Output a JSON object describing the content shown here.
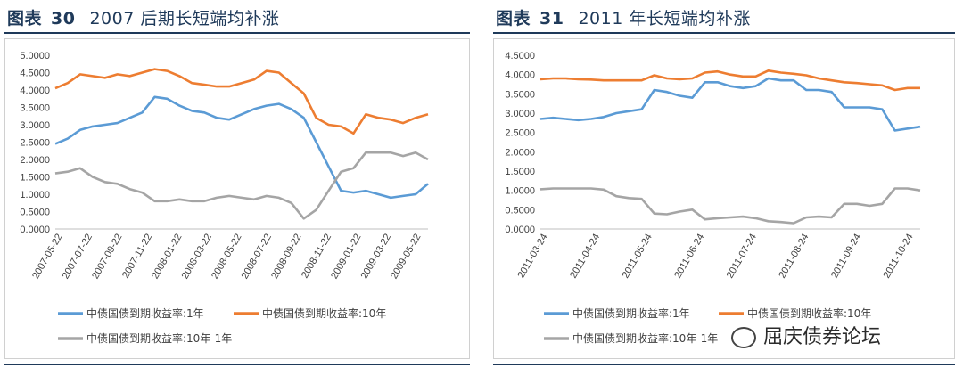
{
  "charts": [
    {
      "title_prefix": "图表",
      "title_number": "30",
      "title_text": "2007 后期长短端均补涨"
    },
    {
      "title_prefix": "图表",
      "title_number": "31",
      "title_text": "2011 年长短端均补涨"
    }
  ],
  "watermark": "屈庆债券论坛",
  "chart_data": [
    {
      "type": "line",
      "ylim": [
        0,
        5
      ],
      "y_ticks": [
        "0.0000",
        "0.5000",
        "1.0000",
        "1.5000",
        "2.0000",
        "2.5000",
        "3.0000",
        "3.5000",
        "4.0000",
        "4.5000",
        "5.0000"
      ],
      "x_ticks": [
        "2007-05-22",
        "2007-07-22",
        "2007-09-22",
        "2007-11-22",
        "2008-01-22",
        "2008-03-22",
        "2008-05-22",
        "2008-07-22",
        "2008-09-22",
        "2008-11-22",
        "2009-01-22",
        "2009-03-22",
        "2009-05-22"
      ],
      "series": [
        {
          "name": "中债国债到期收益率:1年",
          "color": "#5b9bd5",
          "values": [
            2.45,
            2.6,
            2.85,
            2.95,
            3.0,
            3.05,
            3.2,
            3.35,
            3.8,
            3.75,
            3.55,
            3.4,
            3.35,
            3.2,
            3.15,
            3.3,
            3.45,
            3.55,
            3.6,
            3.45,
            3.2,
            2.5,
            1.8,
            1.1,
            1.05,
            1.1,
            1.0,
            0.9,
            0.95,
            1.0,
            1.3
          ]
        },
        {
          "name": "中债国债到期收益率:10年",
          "color": "#ed7d31",
          "values": [
            4.05,
            4.2,
            4.45,
            4.4,
            4.35,
            4.45,
            4.4,
            4.5,
            4.6,
            4.55,
            4.4,
            4.2,
            4.15,
            4.1,
            4.1,
            4.2,
            4.3,
            4.55,
            4.5,
            4.2,
            3.9,
            3.2,
            3.0,
            2.95,
            2.75,
            3.3,
            3.2,
            3.15,
            3.05,
            3.2,
            3.3
          ]
        },
        {
          "name": "中债国债到期收益率:10年-1年",
          "color": "#a5a5a5",
          "values": [
            1.6,
            1.65,
            1.75,
            1.5,
            1.35,
            1.3,
            1.15,
            1.05,
            0.8,
            0.8,
            0.85,
            0.8,
            0.8,
            0.9,
            0.95,
            0.9,
            0.85,
            0.95,
            0.9,
            0.75,
            0.3,
            0.55,
            1.1,
            1.65,
            1.75,
            2.2,
            2.2,
            2.2,
            2.1,
            2.2,
            2.0
          ]
        }
      ]
    },
    {
      "type": "line",
      "ylim": [
        0,
        4.5
      ],
      "y_ticks": [
        "0.0000",
        "0.5000",
        "1.0000",
        "1.5000",
        "2.0000",
        "2.5000",
        "3.0000",
        "3.5000",
        "4.0000",
        "4.5000"
      ],
      "x_ticks": [
        "2011-03-24",
        "2011-04-24",
        "2011-05-24",
        "2011-06-24",
        "2011-07-24",
        "2011-08-24",
        "2011-09-24",
        "2011-10-24"
      ],
      "series": [
        {
          "name": "中债国债到期收益率:1年",
          "color": "#5b9bd5",
          "values": [
            2.85,
            2.88,
            2.85,
            2.82,
            2.85,
            2.9,
            3.0,
            3.05,
            3.1,
            3.6,
            3.55,
            3.45,
            3.4,
            3.8,
            3.8,
            3.7,
            3.65,
            3.7,
            3.9,
            3.85,
            3.85,
            3.6,
            3.6,
            3.55,
            3.15,
            3.15,
            3.15,
            3.1,
            2.55,
            2.6,
            2.65
          ]
        },
        {
          "name": "中债国债到期收益率:10年",
          "color": "#ed7d31",
          "values": [
            3.88,
            3.9,
            3.9,
            3.88,
            3.87,
            3.85,
            3.85,
            3.85,
            3.85,
            3.98,
            3.9,
            3.88,
            3.9,
            4.05,
            4.08,
            4.0,
            3.95,
            3.95,
            4.1,
            4.05,
            4.02,
            3.98,
            3.9,
            3.85,
            3.8,
            3.78,
            3.75,
            3.72,
            3.6,
            3.65,
            3.65
          ]
        },
        {
          "name": "中债国债到期收益率:10年-1年",
          "color": "#a5a5a5",
          "values": [
            1.03,
            1.05,
            1.05,
            1.05,
            1.05,
            1.02,
            0.85,
            0.8,
            0.78,
            0.4,
            0.38,
            0.45,
            0.5,
            0.25,
            0.28,
            0.3,
            0.32,
            0.28,
            0.2,
            0.18,
            0.15,
            0.3,
            0.32,
            0.3,
            0.65,
            0.65,
            0.6,
            0.65,
            1.05,
            1.05,
            1.0
          ]
        }
      ]
    }
  ]
}
